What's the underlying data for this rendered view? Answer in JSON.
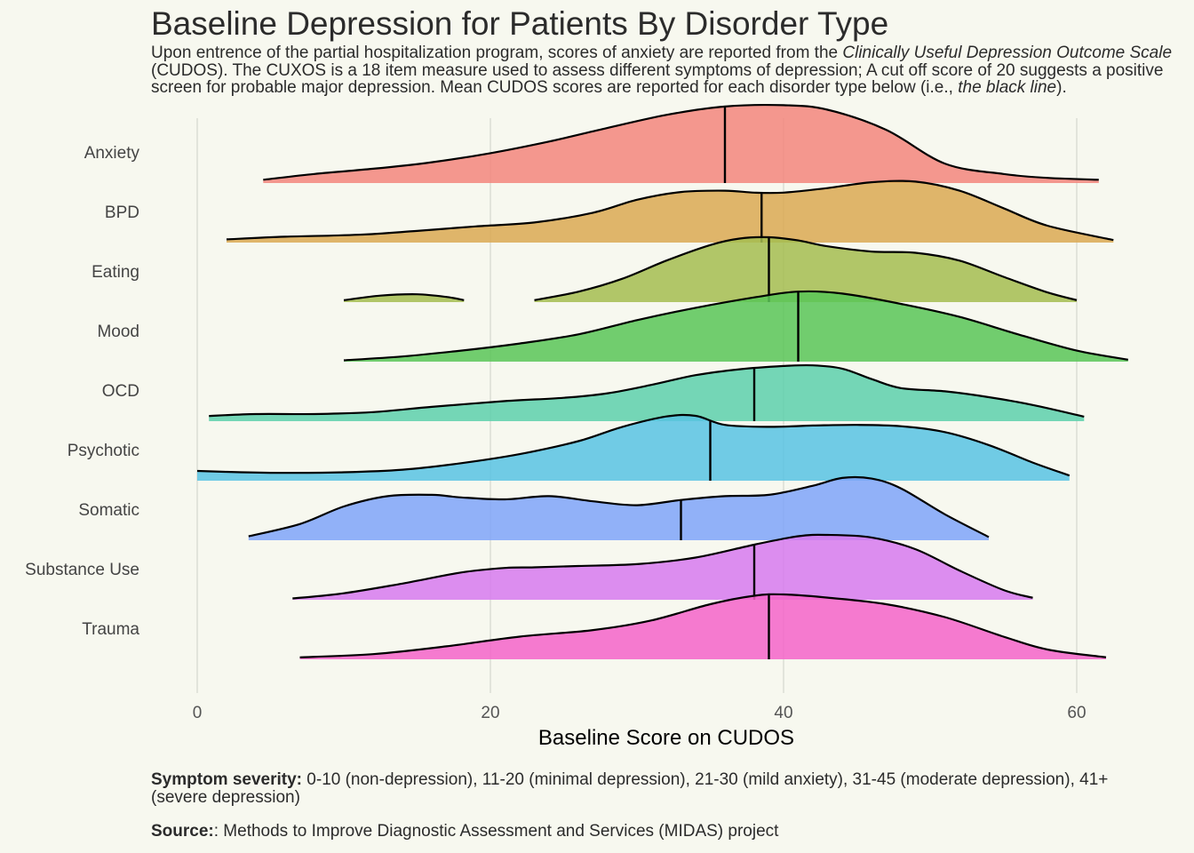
{
  "title": "Baseline Depression for Patients By Disorder Type",
  "subtitle": {
    "part1": "Upon entrence of the partial hospitalization program, scores of anxiety are reported from the ",
    "italic1": "Clinically Useful Depression Outcome Scale",
    "part2": " (CUDOS). The CUXOS is a 18 item measure used to assess different symptoms of depression; A cut off score of 20 suggests a positive screen for probable major depression. Mean CUDOS scores are reported for each disorder type below (i.e., ",
    "italic2": "the black line",
    "part3": ")."
  },
  "caption": {
    "severity_label": "Symptom severity:",
    "severity_text": " 0-10 (non-depression), 11-20 (minimal depression), 21-30 (mild anxiety), 31-45 (moderate depression), 41+ (severe depression)",
    "source_label": "Source:",
    "source_text": ": Methods to Improve Diagnostic Assessment and Services (MIDAS) project"
  },
  "chart_data": {
    "type": "ridgeline",
    "xlabel": "Baseline Score on CUDOS",
    "ylabel": "",
    "xlim": [
      -3,
      64
    ],
    "xticks": [
      0,
      20,
      40,
      60
    ],
    "grid": "vertical",
    "legend": "none",
    "series": [
      {
        "name": "Trauma",
        "color": "#f564c9",
        "mean": 39,
        "curve": [
          [
            7,
            0.03
          ],
          [
            12,
            0.08
          ],
          [
            17,
            0.2
          ],
          [
            22,
            0.35
          ],
          [
            27,
            0.45
          ],
          [
            31,
            0.6
          ],
          [
            35,
            0.85
          ],
          [
            38,
            0.98
          ],
          [
            40,
            1.0
          ],
          [
            43,
            0.95
          ],
          [
            47,
            0.85
          ],
          [
            51,
            0.65
          ],
          [
            55,
            0.35
          ],
          [
            58,
            0.15
          ],
          [
            62,
            0.03
          ]
        ]
      },
      {
        "name": "Substance Use",
        "color": "#d77aee",
        "mean": 38,
        "curve": [
          [
            6.5,
            0.02
          ],
          [
            10,
            0.1
          ],
          [
            14,
            0.25
          ],
          [
            18,
            0.42
          ],
          [
            21,
            0.49
          ],
          [
            23,
            0.5
          ],
          [
            26,
            0.52
          ],
          [
            30,
            0.55
          ],
          [
            34,
            0.65
          ],
          [
            38,
            0.85
          ],
          [
            41,
            0.98
          ],
          [
            43,
            1.0
          ],
          [
            46,
            0.96
          ],
          [
            49,
            0.78
          ],
          [
            52,
            0.45
          ],
          [
            55,
            0.15
          ],
          [
            57,
            0.03
          ]
        ]
      },
      {
        "name": "Somatic",
        "color": "#7fa4f9",
        "mean": 33,
        "curve": [
          [
            3.5,
            0.06
          ],
          [
            7,
            0.25
          ],
          [
            10,
            0.52
          ],
          [
            13,
            0.68
          ],
          [
            16,
            0.7
          ],
          [
            18,
            0.66
          ],
          [
            21,
            0.63
          ],
          [
            24,
            0.68
          ],
          [
            27,
            0.6
          ],
          [
            30,
            0.54
          ],
          [
            33,
            0.62
          ],
          [
            36,
            0.68
          ],
          [
            39,
            0.7
          ],
          [
            42,
            0.84
          ],
          [
            44,
            0.96
          ],
          [
            46,
            0.95
          ],
          [
            48,
            0.8
          ],
          [
            51,
            0.4
          ],
          [
            54,
            0.05
          ]
        ]
      },
      {
        "name": "Psychotic",
        "color": "#58c3e3",
        "mean": 35,
        "curve": [
          [
            0,
            0.15
          ],
          [
            3,
            0.13
          ],
          [
            6,
            0.12
          ],
          [
            10,
            0.13
          ],
          [
            14,
            0.17
          ],
          [
            18,
            0.27
          ],
          [
            22,
            0.41
          ],
          [
            26,
            0.61
          ],
          [
            29,
            0.83
          ],
          [
            32,
            0.99
          ],
          [
            34,
            1.0
          ],
          [
            36,
            0.86
          ],
          [
            39,
            0.83
          ],
          [
            42,
            0.85
          ],
          [
            45,
            0.86
          ],
          [
            48,
            0.84
          ],
          [
            51,
            0.75
          ],
          [
            54,
            0.55
          ],
          [
            57,
            0.28
          ],
          [
            59.5,
            0.08
          ]
        ]
      },
      {
        "name": "OCD",
        "color": "#5dd0ac",
        "mean": 38,
        "curve": [
          [
            0.8,
            0.08
          ],
          [
            4,
            0.11
          ],
          [
            8,
            0.11
          ],
          [
            12,
            0.14
          ],
          [
            16,
            0.22
          ],
          [
            21,
            0.31
          ],
          [
            25,
            0.36
          ],
          [
            28,
            0.43
          ],
          [
            31,
            0.56
          ],
          [
            34,
            0.71
          ],
          [
            37,
            0.8
          ],
          [
            40,
            0.85
          ],
          [
            42,
            0.86
          ],
          [
            44,
            0.81
          ],
          [
            46,
            0.65
          ],
          [
            48,
            0.51
          ],
          [
            51,
            0.46
          ],
          [
            54,
            0.37
          ],
          [
            57,
            0.25
          ],
          [
            60.5,
            0.07
          ]
        ]
      },
      {
        "name": "Mood",
        "color": "#59c557",
        "mean": 41,
        "curve": [
          [
            10,
            0.02
          ],
          [
            14,
            0.08
          ],
          [
            18,
            0.17
          ],
          [
            22,
            0.28
          ],
          [
            26,
            0.42
          ],
          [
            30,
            0.64
          ],
          [
            34,
            0.83
          ],
          [
            38,
            0.99
          ],
          [
            41,
            1.08
          ],
          [
            44,
            1.05
          ],
          [
            48,
            0.89
          ],
          [
            52,
            0.69
          ],
          [
            56,
            0.42
          ],
          [
            60,
            0.17
          ],
          [
            63.5,
            0.03
          ]
        ]
      },
      {
        "name": "Eating",
        "color": "#a5bd50",
        "mean": 39,
        "curve": [
          [
            10,
            0.03
          ],
          [
            12.5,
            0.1
          ],
          [
            15,
            0.12
          ],
          [
            17,
            0.08
          ],
          [
            18.2,
            0.03
          ],
          [
            18.21,
            0
          ],
          [
            22.99,
            0
          ],
          [
            23,
            0.03
          ],
          [
            26,
            0.16
          ],
          [
            29,
            0.36
          ],
          [
            32,
            0.64
          ],
          [
            35,
            0.88
          ],
          [
            37,
            0.98
          ],
          [
            39,
            1.0
          ],
          [
            41,
            0.95
          ],
          [
            43,
            0.86
          ],
          [
            46,
            0.78
          ],
          [
            49,
            0.76
          ],
          [
            52,
            0.64
          ],
          [
            55,
            0.39
          ],
          [
            58,
            0.15
          ],
          [
            60,
            0.03
          ]
        ]
      },
      {
        "name": "BPD",
        "color": "#dba952",
        "mean": 38.5,
        "curve": [
          [
            2,
            0.05
          ],
          [
            6,
            0.09
          ],
          [
            11,
            0.12
          ],
          [
            15,
            0.18
          ],
          [
            19,
            0.25
          ],
          [
            23,
            0.31
          ],
          [
            27,
            0.46
          ],
          [
            30,
            0.66
          ],
          [
            33,
            0.78
          ],
          [
            36,
            0.8
          ],
          [
            38,
            0.77
          ],
          [
            40,
            0.77
          ],
          [
            43,
            0.84
          ],
          [
            46,
            0.93
          ],
          [
            49,
            0.94
          ],
          [
            52,
            0.8
          ],
          [
            55,
            0.53
          ],
          [
            58,
            0.26
          ],
          [
            62.5,
            0.04
          ]
        ]
      },
      {
        "name": "Anxiety",
        "color": "#f3867c",
        "mean": 36,
        "curve": [
          [
            4.5,
            0.05
          ],
          [
            8,
            0.14
          ],
          [
            12,
            0.22
          ],
          [
            16,
            0.32
          ],
          [
            20,
            0.46
          ],
          [
            24,
            0.64
          ],
          [
            28,
            0.85
          ],
          [
            32,
            1.05
          ],
          [
            36,
            1.18
          ],
          [
            40,
            1.2
          ],
          [
            43,
            1.13
          ],
          [
            47,
            0.82
          ],
          [
            51,
            0.3
          ],
          [
            55,
            0.14
          ],
          [
            58,
            0.08
          ],
          [
            61.5,
            0.05
          ]
        ]
      }
    ]
  }
}
